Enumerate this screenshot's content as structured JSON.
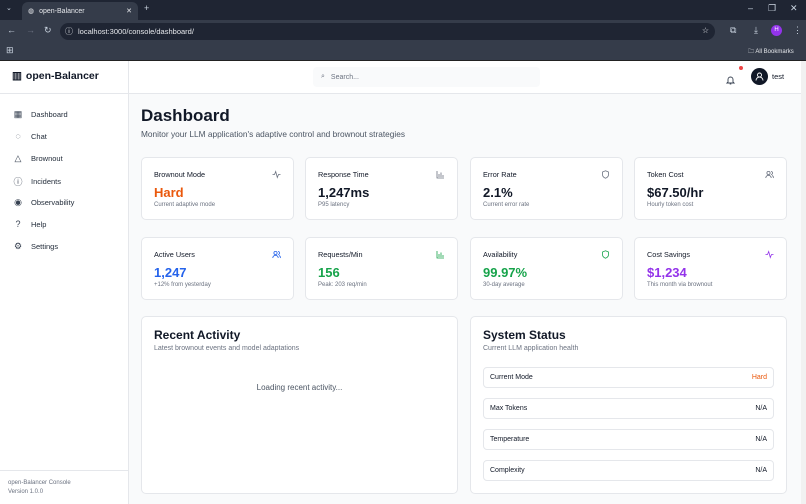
{
  "browser": {
    "tab_title": "open-Balancer",
    "url": "localhost:3000/console/dashboard/",
    "bookmarks_label": "All Bookmarks",
    "profile_initial": "H"
  },
  "app": {
    "brand": "open-Balancer",
    "search_placeholder": "Search...",
    "user": "test"
  },
  "sidebar": {
    "items": [
      {
        "label": "Dashboard",
        "icon": "grid-icon"
      },
      {
        "label": "Chat",
        "icon": "message-icon"
      },
      {
        "label": "Brownout",
        "icon": "warning-icon"
      },
      {
        "label": "Incidents",
        "icon": "alert-circle-icon"
      },
      {
        "label": "Observability",
        "icon": "eye-icon"
      },
      {
        "label": "Help",
        "icon": "help-icon"
      },
      {
        "label": "Settings",
        "icon": "gear-icon"
      }
    ],
    "footer_name": "open-Balancer Console",
    "footer_version": "Version 1.0.0"
  },
  "page": {
    "title": "Dashboard",
    "subtitle": "Monitor your LLM application's adaptive control and brownout strategies"
  },
  "cards": [
    {
      "title": "Brownout Mode",
      "value": "Hard",
      "sub": "Current adaptive mode",
      "color": "#ea580c",
      "icon": "activity-icon"
    },
    {
      "title": "Response Time",
      "value": "1,247ms",
      "sub": "P95 latency",
      "color": "#111827",
      "icon": "bar-chart-icon"
    },
    {
      "title": "Error Rate",
      "value": "2.1%",
      "sub": "Current error rate",
      "color": "#111827",
      "icon": "shield-icon"
    },
    {
      "title": "Token Cost",
      "value": "$67.50/hr",
      "sub": "Hourly token cost",
      "color": "#111827",
      "icon": "users-icon"
    },
    {
      "title": "Active Users",
      "value": "1,247",
      "sub": "+12% from yesterday",
      "color": "#2563eb",
      "icon": "users-icon"
    },
    {
      "title": "Requests/Min",
      "value": "156",
      "sub": "Peak: 203 req/min",
      "color": "#16a34a",
      "icon": "bar-chart-icon"
    },
    {
      "title": "Availability",
      "value": "99.97%",
      "sub": "30-day average",
      "color": "#16a34a",
      "icon": "shield-icon"
    },
    {
      "title": "Cost Savings",
      "value": "$1,234",
      "sub": "This month via brownout",
      "color": "#9333ea",
      "icon": "activity-icon"
    }
  ],
  "activity": {
    "title": "Recent Activity",
    "subtitle": "Latest brownout events and model adaptations",
    "loading": "Loading recent activity..."
  },
  "status": {
    "title": "System Status",
    "subtitle": "Current LLM application health",
    "rows": [
      {
        "label": "Current Mode",
        "value": "Hard",
        "color": "#ea580c"
      },
      {
        "label": "Max Tokens",
        "value": "N/A"
      },
      {
        "label": "Temperature",
        "value": "N/A"
      },
      {
        "label": "Complexity",
        "value": "N/A"
      }
    ]
  }
}
